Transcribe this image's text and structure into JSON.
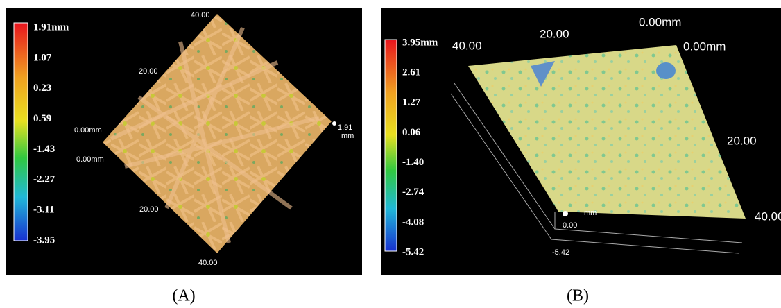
{
  "panels": [
    {
      "caption": "(A)",
      "colorbar": {
        "labels": [
          "1.91mm",
          "1.07",
          "0.23",
          "0.59",
          "-1.43",
          "-2.27",
          "-3.11",
          "-3.95"
        ]
      },
      "axis_labels": [
        "40.00",
        "20.00",
        "0.00mm",
        "0.00mm",
        "20.00",
        "40.00",
        "1.91",
        "mm"
      ]
    },
    {
      "caption": "(B)",
      "colorbar": {
        "labels": [
          "3.95mm",
          "2.61",
          "1.27",
          "0.06",
          "-1.40",
          "-2.74",
          "-4.08",
          "-5.42"
        ]
      },
      "axis_labels": [
        "40.00",
        "20.00",
        "0.00mm",
        "0.00mm",
        "20.00",
        "40.00",
        "0.00",
        "-5.42",
        "mm"
      ]
    }
  ]
}
